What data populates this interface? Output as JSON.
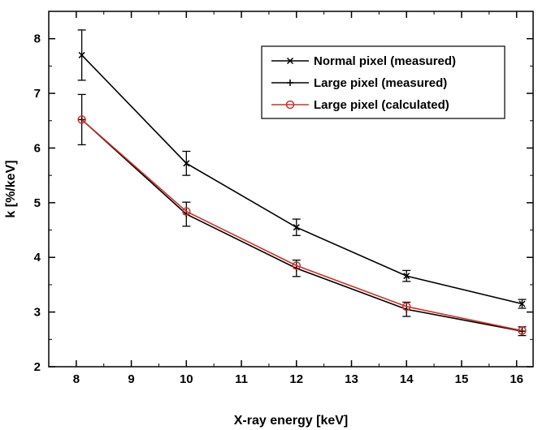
{
  "chart_data": {
    "type": "line",
    "xlabel": "X-ray energy [keV]",
    "ylabel": "k [%/keV]",
    "xlim": [
      7.5,
      16.3
    ],
    "ylim": [
      2,
      8.5
    ],
    "xticks": [
      8,
      9,
      10,
      11,
      12,
      13,
      14,
      15,
      16
    ],
    "yticks": [
      2,
      3,
      4,
      5,
      6,
      7,
      8
    ],
    "legend_position": "top-right",
    "series": [
      {
        "name": "Normal pixel (measured)",
        "marker": "x",
        "color": "#000000",
        "x": [
          8.1,
          10.0,
          12.0,
          14.0,
          16.1
        ],
        "y": [
          7.7,
          5.72,
          4.55,
          3.66,
          3.15
        ],
        "err": [
          0.46,
          0.22,
          0.15,
          0.1,
          0.08
        ]
      },
      {
        "name": "Large pixel (measured)",
        "marker": "+",
        "color": "#000000",
        "x": [
          8.1,
          10.0,
          12.0,
          14.0,
          16.1
        ],
        "y": [
          6.52,
          4.79,
          3.8,
          3.05,
          2.65
        ],
        "err": [
          0.46,
          0.22,
          0.15,
          0.13,
          0.08
        ]
      },
      {
        "name": "Large pixel (calculated)",
        "marker": "o",
        "color": "#d0302a",
        "x": [
          8.1,
          10.0,
          12.0,
          14.0,
          16.1
        ],
        "y": [
          6.52,
          4.84,
          3.85,
          3.1,
          2.66
        ],
        "err": []
      }
    ]
  }
}
